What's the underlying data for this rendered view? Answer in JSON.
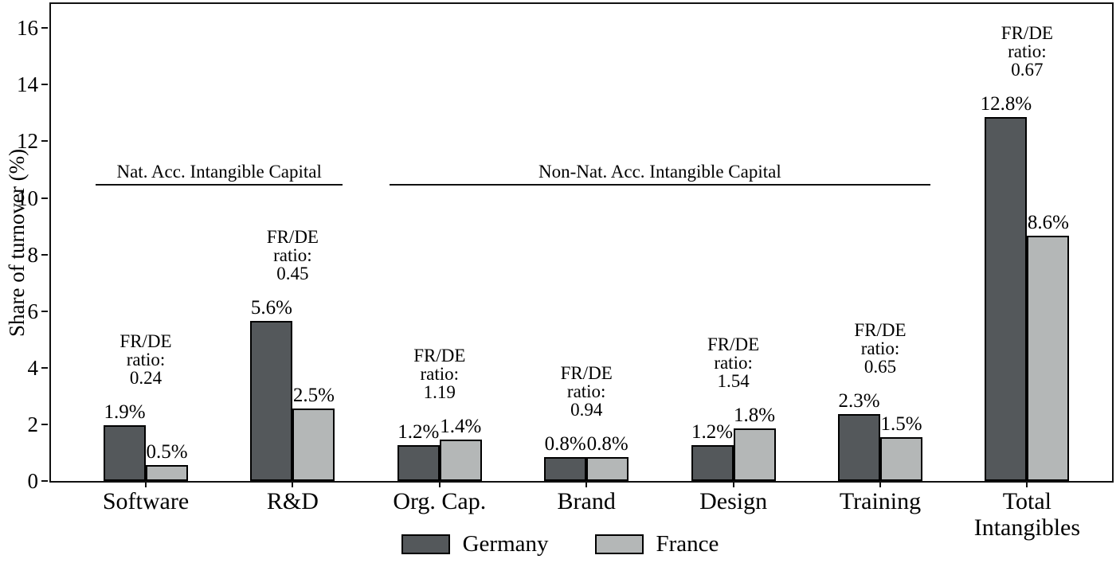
{
  "chart_data": {
    "type": "bar",
    "title": "",
    "ylabel": "Share of turnover (%)",
    "ylim": [
      0,
      16.85
    ],
    "yticks": [
      0,
      2,
      4,
      6,
      8,
      10,
      12,
      14,
      16
    ],
    "grid": false,
    "legend_position": "bottom-center",
    "categories": [
      "Software",
      "R&D",
      "Org. Cap.",
      "Brand",
      "Design",
      "Training",
      "Total\nIntangibles"
    ],
    "series": [
      {
        "name": "Germany",
        "color": "#54585B",
        "values": [
          1.9,
          5.6,
          1.2,
          0.8,
          1.2,
          2.3,
          12.8
        ],
        "labels": [
          "1.9%",
          "5.6%",
          "1.2%",
          "0.8%",
          "1.2%",
          "2.3%",
          "12.8%"
        ]
      },
      {
        "name": "France",
        "color": "#B4B7B7",
        "values": [
          0.5,
          2.5,
          1.4,
          0.8,
          1.8,
          1.5,
          8.6
        ],
        "labels": [
          "0.5%",
          "2.5%",
          "1.4%",
          "0.8%",
          "1.8%",
          "1.5%",
          "8.6%"
        ]
      }
    ],
    "annotations": [
      {
        "category_index": 0,
        "lines": [
          "FR/DE",
          "ratio:",
          "0.24"
        ]
      },
      {
        "category_index": 1,
        "lines": [
          "FR/DE",
          "ratio:",
          "0.45"
        ]
      },
      {
        "category_index": 2,
        "lines": [
          "FR/DE",
          "ratio:",
          "1.19"
        ]
      },
      {
        "category_index": 3,
        "lines": [
          "FR/DE",
          "ratio:",
          "0.94"
        ]
      },
      {
        "category_index": 4,
        "lines": [
          "FR/DE",
          "ratio:",
          "1.54"
        ]
      },
      {
        "category_index": 5,
        "lines": [
          "FR/DE",
          "ratio:",
          "0.65"
        ]
      },
      {
        "category_index": 6,
        "lines": [
          "FR/DE",
          "ratio:",
          "0.67"
        ]
      }
    ],
    "sections": [
      {
        "label": "Nat. Acc. Intangible Capital",
        "from": 0,
        "to": 1,
        "y": 10.5
      },
      {
        "label": "Non-Nat. Acc. Intangible Capital",
        "from": 2,
        "to": 5,
        "y": 10.5
      }
    ]
  }
}
